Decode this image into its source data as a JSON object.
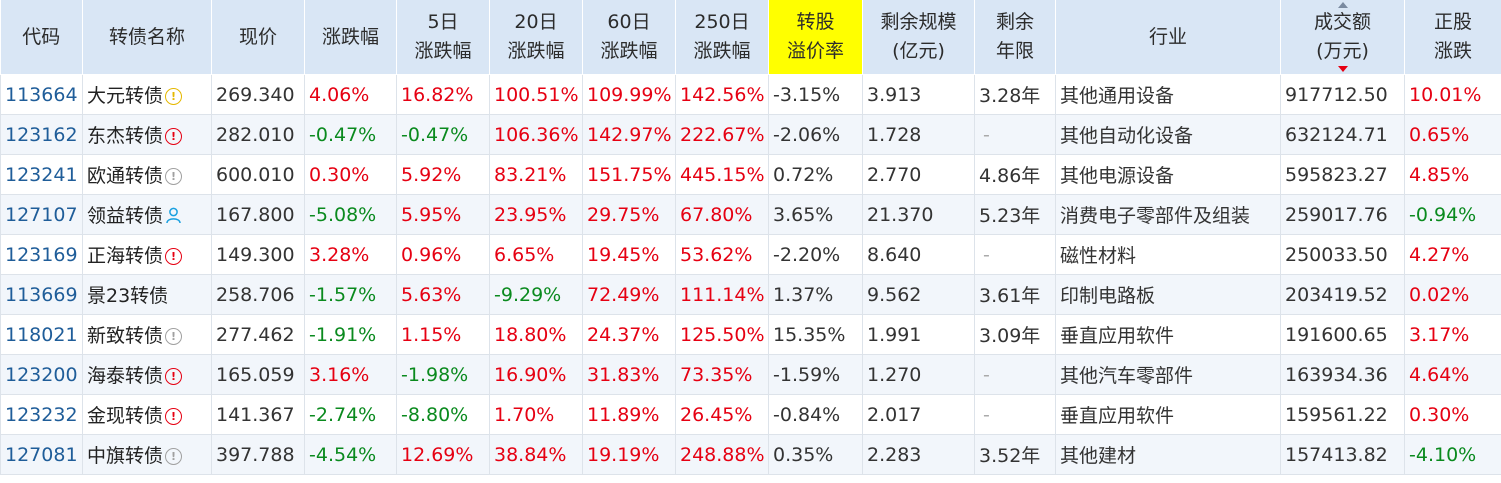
{
  "colors": {
    "header_bg": "#d9e6f5",
    "header_highlight": "#ffff00",
    "up": "#e60012",
    "down": "#0a8a1e",
    "code_link": "#1f5d99",
    "row_alt": "#f2f6fb"
  },
  "columns": [
    {
      "key": "code",
      "label": "代码"
    },
    {
      "key": "name",
      "label": "转债名称"
    },
    {
      "key": "price",
      "label": "现价"
    },
    {
      "key": "chg",
      "label": "涨跌幅"
    },
    {
      "key": "chg5",
      "label": "5日\n涨跌幅"
    },
    {
      "key": "chg20",
      "label": "20日\n涨跌幅"
    },
    {
      "key": "chg60",
      "label": "60日\n涨跌幅"
    },
    {
      "key": "chg250",
      "label": "250日\n涨跌幅"
    },
    {
      "key": "premium",
      "label": "转股\n溢价率",
      "highlight": true
    },
    {
      "key": "scale",
      "label": "剩余规模\n(亿元)"
    },
    {
      "key": "years",
      "label": "剩余\n年限"
    },
    {
      "key": "industry",
      "label": "行业"
    },
    {
      "key": "amount",
      "label": "成交额\n(万元)",
      "sorted": "desc"
    },
    {
      "key": "stock_chg",
      "label": "正股\n涨跌"
    }
  ],
  "rows": [
    {
      "code": "113664",
      "name": "大元转债",
      "badge": "yellow",
      "badge_icon": "warning-circle-icon",
      "price": "269.340",
      "chg": "4.06%",
      "chg5": "16.82%",
      "chg20": "100.51%",
      "chg60": "109.99%",
      "chg250": "142.56%",
      "premium": "-3.15%",
      "scale": "3.913",
      "years": "3.28年",
      "industry": "其他通用设备",
      "amount": "917712.50",
      "stock_chg": "10.01%"
    },
    {
      "code": "123162",
      "name": "东杰转债",
      "badge": "red",
      "badge_icon": "alert-circle-icon",
      "price": "282.010",
      "chg": "-0.47%",
      "chg5": "-0.47%",
      "chg20": "106.36%",
      "chg60": "142.97%",
      "chg250": "222.67%",
      "premium": "-2.06%",
      "scale": "1.728",
      "years": "-",
      "industry": "其他自动化设备",
      "amount": "632124.71",
      "stock_chg": "0.65%"
    },
    {
      "code": "123241",
      "name": "欧通转债",
      "badge": "gray",
      "badge_icon": "info-circle-icon",
      "price": "600.010",
      "chg": "0.30%",
      "chg5": "5.92%",
      "chg20": "83.21%",
      "chg60": "151.75%",
      "chg250": "445.15%",
      "premium": "0.72%",
      "scale": "2.770",
      "years": "4.86年",
      "industry": "其他电源设备",
      "amount": "595823.27",
      "stock_chg": "4.85%"
    },
    {
      "code": "127107",
      "name": "领益转债",
      "badge": "user",
      "badge_icon": "user-icon",
      "price": "167.800",
      "chg": "-5.08%",
      "chg5": "5.95%",
      "chg20": "23.95%",
      "chg60": "29.75%",
      "chg250": "67.80%",
      "premium": "3.65%",
      "scale": "21.370",
      "years": "5.23年",
      "industry": "消费电子零部件及组装",
      "amount": "259017.76",
      "stock_chg": "-0.94%"
    },
    {
      "code": "123169",
      "name": "正海转债",
      "badge": "red",
      "badge_icon": "alert-circle-icon",
      "price": "149.300",
      "chg": "3.28%",
      "chg5": "0.96%",
      "chg20": "6.65%",
      "chg60": "19.45%",
      "chg250": "53.62%",
      "premium": "-2.20%",
      "scale": "8.640",
      "years": "-",
      "industry": "磁性材料",
      "amount": "250033.50",
      "stock_chg": "4.27%"
    },
    {
      "code": "113669",
      "name": "景23转债",
      "badge": "",
      "badge_icon": "",
      "price": "258.706",
      "chg": "-1.57%",
      "chg5": "5.63%",
      "chg20": "-9.29%",
      "chg60": "72.49%",
      "chg250": "111.14%",
      "premium": "1.37%",
      "scale": "9.562",
      "years": "3.61年",
      "industry": "印制电路板",
      "amount": "203419.52",
      "stock_chg": "0.02%"
    },
    {
      "code": "118021",
      "name": "新致转债",
      "badge": "gray",
      "badge_icon": "info-circle-icon",
      "price": "277.462",
      "chg": "-1.91%",
      "chg5": "1.15%",
      "chg20": "18.80%",
      "chg60": "24.37%",
      "chg250": "125.50%",
      "premium": "15.35%",
      "scale": "1.991",
      "years": "3.09年",
      "industry": "垂直应用软件",
      "amount": "191600.65",
      "stock_chg": "3.17%"
    },
    {
      "code": "123200",
      "name": "海泰转债",
      "badge": "red",
      "badge_icon": "alert-circle-icon",
      "price": "165.059",
      "chg": "3.16%",
      "chg5": "-1.98%",
      "chg20": "16.90%",
      "chg60": "31.83%",
      "chg250": "73.35%",
      "premium": "-1.59%",
      "scale": "1.270",
      "years": "-",
      "industry": "其他汽车零部件",
      "amount": "163934.36",
      "stock_chg": "4.64%"
    },
    {
      "code": "123232",
      "name": "金现转债",
      "badge": "red",
      "badge_icon": "alert-circle-icon",
      "price": "141.367",
      "chg": "-2.74%",
      "chg5": "-8.80%",
      "chg20": "1.70%",
      "chg60": "11.89%",
      "chg250": "26.45%",
      "premium": "-0.84%",
      "scale": "2.017",
      "years": "-",
      "industry": "垂直应用软件",
      "amount": "159561.22",
      "stock_chg": "0.30%"
    },
    {
      "code": "127081",
      "name": "中旗转债",
      "badge": "gray",
      "badge_icon": "info-circle-icon",
      "price": "397.788",
      "chg": "-4.54%",
      "chg5": "12.69%",
      "chg20": "38.84%",
      "chg60": "19.19%",
      "chg250": "248.88%",
      "premium": "0.35%",
      "scale": "2.283",
      "years": "3.52年",
      "industry": "其他建材",
      "amount": "157413.82",
      "stock_chg": "-4.10%"
    }
  ]
}
